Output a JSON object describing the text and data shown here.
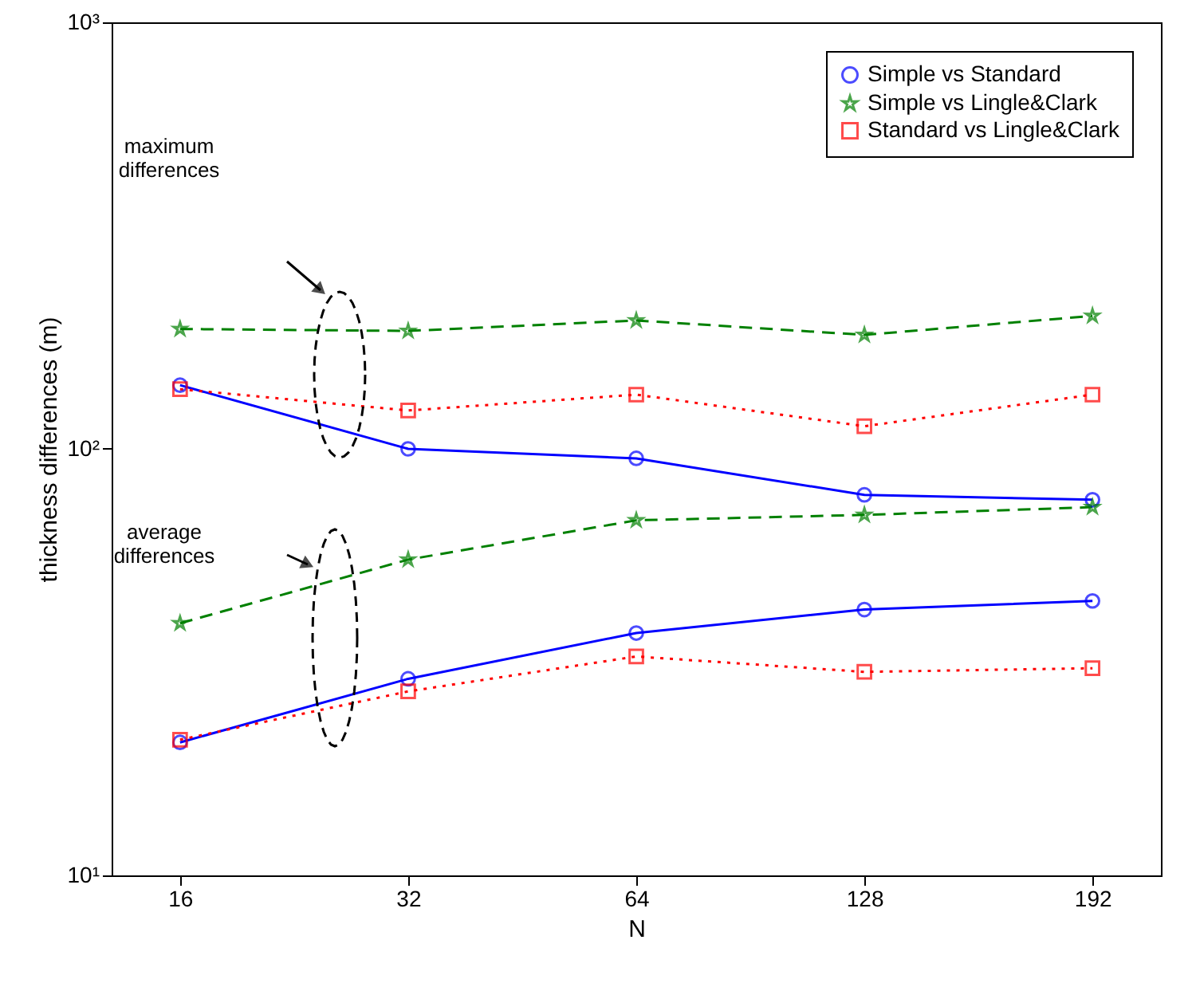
{
  "chart_data": {
    "type": "line",
    "xlabel": "N",
    "ylabel": "thickness differences (m)",
    "categories": [
      "16",
      "32",
      "64",
      "128",
      "192"
    ],
    "ylim": [
      10,
      1000
    ],
    "yticks": [
      {
        "value": 10,
        "label": "10¹"
      },
      {
        "value": 100,
        "label": "10²"
      },
      {
        "value": 1000,
        "label": "10³"
      }
    ],
    "log": true,
    "grid": false,
    "legend": "top right",
    "series": [
      {
        "name": "Simple vs Standard",
        "color": "#0000ff",
        "marker": "circle",
        "line_style": "solid",
        "values": [
          141,
          100,
          95,
          78,
          76
        ]
      },
      {
        "name": "Simple vs Lingle&Clark",
        "color": "#008000",
        "marker": "star",
        "line_style": "dashed",
        "values": [
          191,
          189,
          200,
          185,
          205
        ]
      },
      {
        "name": "Standard vs Lingle&Clark",
        "color": "#ff0000",
        "marker": "square",
        "line_style": "dotted",
        "values": [
          138,
          123,
          134,
          113,
          134
        ]
      },
      {
        "color": "#0000ff",
        "marker": "circle",
        "line_style": "solid",
        "values": [
          20.5,
          28.9,
          37,
          42,
          44
        ]
      },
      {
        "color": "#008000",
        "marker": "star",
        "line_style": "dashed",
        "values": [
          39,
          55,
          68,
          70,
          73
        ]
      },
      {
        "color": "#ff0000",
        "marker": "square",
        "line_style": "dotted",
        "values": [
          20.8,
          27,
          32.6,
          30,
          30.6
        ]
      }
    ],
    "annotations": [
      "maximum differences",
      "average differences"
    ]
  }
}
